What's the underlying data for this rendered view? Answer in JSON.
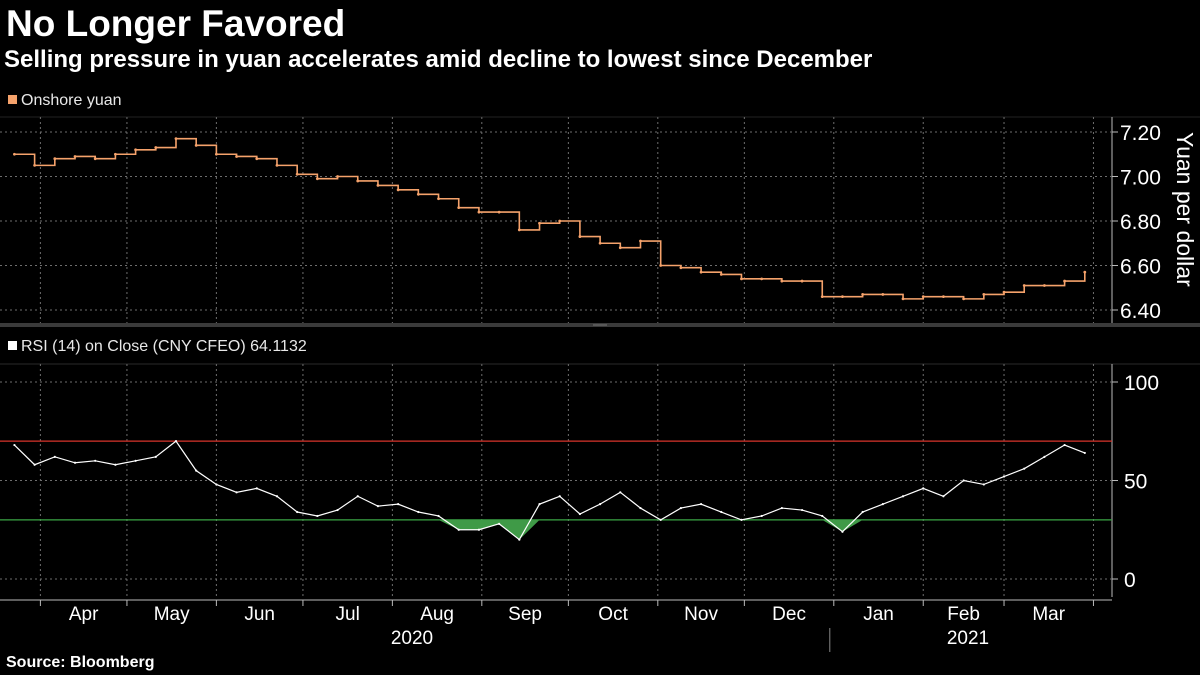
{
  "header": {
    "title": "No Longer Favored",
    "subtitle": "Selling pressure in yuan accelerates amid decline to lowest since December"
  },
  "footer": {
    "source": "Source: Bloomberg"
  },
  "colors": {
    "background": "#000000",
    "price_line": "#f5a26b",
    "rsi_line": "#ffffff",
    "overbought": "#d9342b",
    "oversold": "#3aa645",
    "oversold_fill": "#3f9a47",
    "grid": "#6e6e6e"
  },
  "chart_data": [
    {
      "type": "line",
      "series": [
        {
          "name": "Onshore yuan",
          "x": [
            "2020-03-23",
            "2020-03-30",
            "2020-04-06",
            "2020-04-13",
            "2020-04-20",
            "2020-04-27",
            "2020-05-04",
            "2020-05-11",
            "2020-05-18",
            "2020-05-25",
            "2020-06-01",
            "2020-06-08",
            "2020-06-15",
            "2020-06-22",
            "2020-06-29",
            "2020-07-06",
            "2020-07-13",
            "2020-07-20",
            "2020-07-27",
            "2020-08-03",
            "2020-08-10",
            "2020-08-17",
            "2020-08-24",
            "2020-08-31",
            "2020-09-07",
            "2020-09-14",
            "2020-09-21",
            "2020-09-28",
            "2020-10-05",
            "2020-10-12",
            "2020-10-19",
            "2020-10-26",
            "2020-11-02",
            "2020-11-09",
            "2020-11-16",
            "2020-11-23",
            "2020-11-30",
            "2020-12-07",
            "2020-12-14",
            "2020-12-21",
            "2020-12-28",
            "2021-01-04",
            "2021-01-11",
            "2021-01-18",
            "2021-01-25",
            "2021-02-01",
            "2021-02-08",
            "2021-02-15",
            "2021-02-22",
            "2021-03-01",
            "2021-03-08",
            "2021-03-15",
            "2021-03-22",
            "2021-03-29"
          ],
          "values": [
            7.1,
            7.05,
            7.08,
            7.09,
            7.08,
            7.1,
            7.12,
            7.13,
            7.17,
            7.14,
            7.1,
            7.09,
            7.08,
            7.05,
            7.01,
            6.99,
            7.0,
            6.98,
            6.96,
            6.94,
            6.92,
            6.9,
            6.86,
            6.84,
            6.84,
            6.76,
            6.79,
            6.8,
            6.73,
            6.7,
            6.68,
            6.71,
            6.6,
            6.59,
            6.57,
            6.56,
            6.54,
            6.54,
            6.53,
            6.53,
            6.46,
            6.46,
            6.47,
            6.47,
            6.45,
            6.46,
            6.46,
            6.45,
            6.47,
            6.48,
            6.51,
            6.51,
            6.53,
            6.57
          ]
        }
      ],
      "ylabel": "Yuan per dollar",
      "ylim": [
        6.4,
        7.2
      ],
      "yticks": [
        "6.40",
        "6.60",
        "6.80",
        "7.00",
        "7.20"
      ],
      "grid": true,
      "legend": "top-left"
    },
    {
      "type": "line",
      "legend_label": "RSI (14)  on Close (CNY CFEO) 64.1132",
      "series": [
        {
          "name": "RSI (14)",
          "x": [
            "2020-03-23",
            "2020-03-30",
            "2020-04-06",
            "2020-04-13",
            "2020-04-20",
            "2020-04-27",
            "2020-05-04",
            "2020-05-11",
            "2020-05-18",
            "2020-05-25",
            "2020-06-01",
            "2020-06-08",
            "2020-06-15",
            "2020-06-22",
            "2020-06-29",
            "2020-07-06",
            "2020-07-13",
            "2020-07-20",
            "2020-07-27",
            "2020-08-03",
            "2020-08-10",
            "2020-08-17",
            "2020-08-24",
            "2020-08-31",
            "2020-09-07",
            "2020-09-14",
            "2020-09-21",
            "2020-09-28",
            "2020-10-05",
            "2020-10-12",
            "2020-10-19",
            "2020-10-26",
            "2020-11-02",
            "2020-11-09",
            "2020-11-16",
            "2020-11-23",
            "2020-11-30",
            "2020-12-07",
            "2020-12-14",
            "2020-12-21",
            "2020-12-28",
            "2021-01-04",
            "2021-01-11",
            "2021-01-18",
            "2021-01-25",
            "2021-02-01",
            "2021-02-08",
            "2021-02-15",
            "2021-02-22",
            "2021-03-01",
            "2021-03-08",
            "2021-03-15",
            "2021-03-22",
            "2021-03-29"
          ],
          "values": [
            68,
            58,
            62,
            59,
            60,
            58,
            60,
            62,
            70,
            55,
            48,
            44,
            46,
            42,
            34,
            32,
            35,
            42,
            37,
            38,
            34,
            32,
            25,
            25,
            28,
            20,
            38,
            42,
            33,
            38,
            44,
            36,
            30,
            36,
            38,
            34,
            30,
            32,
            36,
            35,
            32,
            24,
            34,
            38,
            42,
            46,
            42,
            50,
            48,
            52,
            56,
            62,
            68,
            64
          ]
        }
      ],
      "reference_lines": [
        70,
        30
      ],
      "ylim": [
        0,
        100
      ],
      "yticks": [
        "0",
        "50",
        "100"
      ],
      "grid": true
    }
  ],
  "x_axis": {
    "month_labels": [
      "Apr",
      "May",
      "Jun",
      "Jul",
      "Aug",
      "Sep",
      "Oct",
      "Nov",
      "Dec",
      "Jan",
      "Feb",
      "Mar"
    ],
    "year_labels": [
      "2020",
      "2021"
    ]
  }
}
